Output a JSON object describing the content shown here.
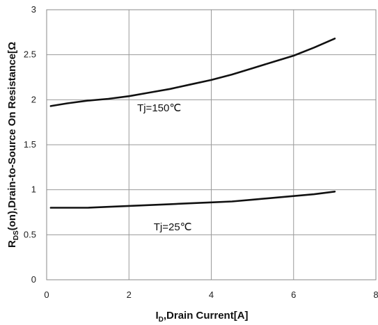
{
  "chart_data": {
    "type": "line",
    "title": "",
    "xlabel": {
      "main": "I",
      "sub": "D",
      "rest": ",Drain Current[A]"
    },
    "ylabel": {
      "main": "R",
      "sub": "DS",
      "rest": "(on),Drain-to-Source On  Resistance[Ω"
    },
    "xlim": [
      0,
      8
    ],
    "ylim": [
      0,
      3
    ],
    "xticks": [
      "0",
      "2",
      "4",
      "6",
      "8"
    ],
    "yticks": [
      "0",
      "0.5",
      "1",
      "1.5",
      "2",
      "2.5",
      "3"
    ],
    "grid": true,
    "legend": "none",
    "series": [
      {
        "name": "Tj=150℃",
        "x": [
          0.1,
          0.5,
          1.0,
          1.5,
          2.0,
          2.5,
          3.0,
          3.5,
          4.0,
          4.5,
          5.0,
          5.5,
          6.0,
          6.5,
          7.0
        ],
        "y": [
          1.93,
          1.96,
          1.99,
          2.01,
          2.04,
          2.08,
          2.12,
          2.17,
          2.22,
          2.28,
          2.35,
          2.42,
          2.49,
          2.58,
          2.68
        ]
      },
      {
        "name": "Tj=25℃",
        "x": [
          0.1,
          0.5,
          1.0,
          1.5,
          2.0,
          2.5,
          3.0,
          3.5,
          4.0,
          4.5,
          5.0,
          5.5,
          6.0,
          6.5,
          7.0
        ],
        "y": [
          0.8,
          0.8,
          0.8,
          0.81,
          0.82,
          0.83,
          0.84,
          0.85,
          0.86,
          0.87,
          0.89,
          0.91,
          0.93,
          0.95,
          0.98
        ]
      }
    ],
    "annotations": [
      {
        "text": "Tj=150℃",
        "x": 2.2,
        "y": 1.87
      },
      {
        "text": "Tj=25℃",
        "x": 2.6,
        "y": 0.55
      }
    ]
  }
}
